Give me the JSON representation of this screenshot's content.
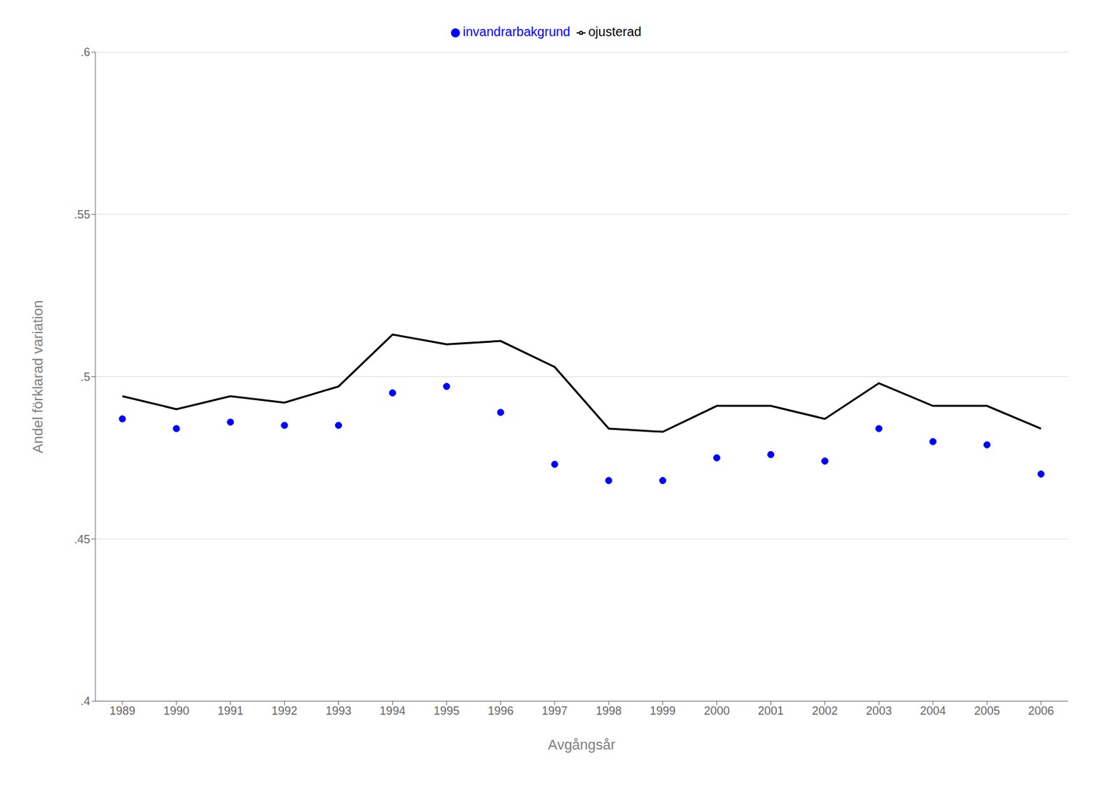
{
  "chart_data": {
    "type": "line",
    "x": [
      1989,
      1990,
      1991,
      1992,
      1993,
      1994,
      1995,
      1996,
      1997,
      1998,
      1999,
      2000,
      2001,
      2002,
      2003,
      2004,
      2005,
      2006
    ],
    "series": [
      {
        "name": "ojusterad",
        "color": "#000000",
        "line_style": "solid",
        "marker": "none",
        "values": [
          0.494,
          0.49,
          0.494,
          0.492,
          0.497,
          0.513,
          0.51,
          0.511,
          0.503,
          0.484,
          0.483,
          0.491,
          0.491,
          0.487,
          0.498,
          0.491,
          0.491,
          0.484
        ]
      },
      {
        "name": "invandrarbakgrund",
        "color": "#0000ff",
        "line_style": "none",
        "marker": "circle",
        "values": [
          0.487,
          0.484,
          0.486,
          0.485,
          0.485,
          0.495,
          0.497,
          0.489,
          0.473,
          0.468,
          0.468,
          0.475,
          0.476,
          0.474,
          0.484,
          0.48,
          0.479,
          0.47
        ]
      }
    ],
    "xlabel": "Avgångsår",
    "ylabel": "Andel förklarad variation",
    "xlim": [
      1988.5,
      2006.5
    ],
    "xticks": [
      1989,
      1990,
      1991,
      1992,
      1993,
      1994,
      1995,
      1996,
      1997,
      1998,
      1999,
      2000,
      2001,
      2002,
      2003,
      2004,
      2005,
      2006
    ],
    "ylim": [
      0.4,
      0.6
    ],
    "yticks": [
      {
        "value": 0.4,
        "label": ".4"
      },
      {
        "value": 0.45,
        "label": ".45"
      },
      {
        "value": 0.5,
        "label": ".5"
      },
      {
        "value": 0.55,
        "label": ".55"
      },
      {
        "value": 0.6,
        "label": ".6"
      }
    ],
    "grid": "y",
    "legend": "top"
  }
}
